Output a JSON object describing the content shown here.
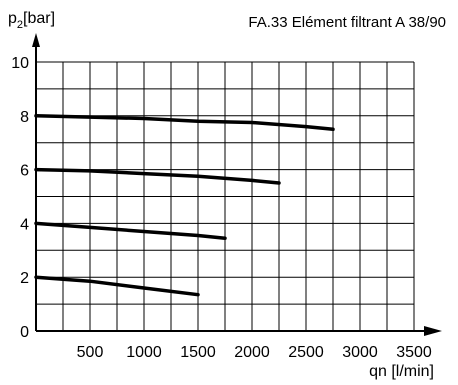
{
  "chart_data": {
    "type": "line",
    "title": "FA.33   Elément filtrant A 38/90",
    "ylabel_base": "p",
    "ylabel_sub": "2",
    "ylabel_unit": "[bar]",
    "xlabel": "qn [l/min]",
    "xlim": [
      0,
      3500
    ],
    "ylim": [
      0,
      10
    ],
    "x_ticks": [
      "500",
      "1000",
      "1500",
      "2000",
      "2500",
      "3000",
      "3500"
    ],
    "y_ticks": [
      "0",
      "2",
      "4",
      "6",
      "8",
      "10"
    ],
    "grid": true,
    "series": [
      {
        "x": [
          0,
          500,
          1000,
          1500,
          2000,
          2500,
          2750
        ],
        "y": [
          8.0,
          7.95,
          7.9,
          7.8,
          7.75,
          7.6,
          7.5
        ]
      },
      {
        "x": [
          0,
          500,
          1000,
          1500,
          2000,
          2250
        ],
        "y": [
          6.0,
          5.95,
          5.85,
          5.75,
          5.6,
          5.5
        ]
      },
      {
        "x": [
          0,
          500,
          1000,
          1500,
          1750
        ],
        "y": [
          4.0,
          3.85,
          3.7,
          3.55,
          3.45
        ]
      },
      {
        "x": [
          0,
          500,
          1000,
          1500
        ],
        "y": [
          2.0,
          1.85,
          1.6,
          1.35
        ]
      }
    ]
  }
}
